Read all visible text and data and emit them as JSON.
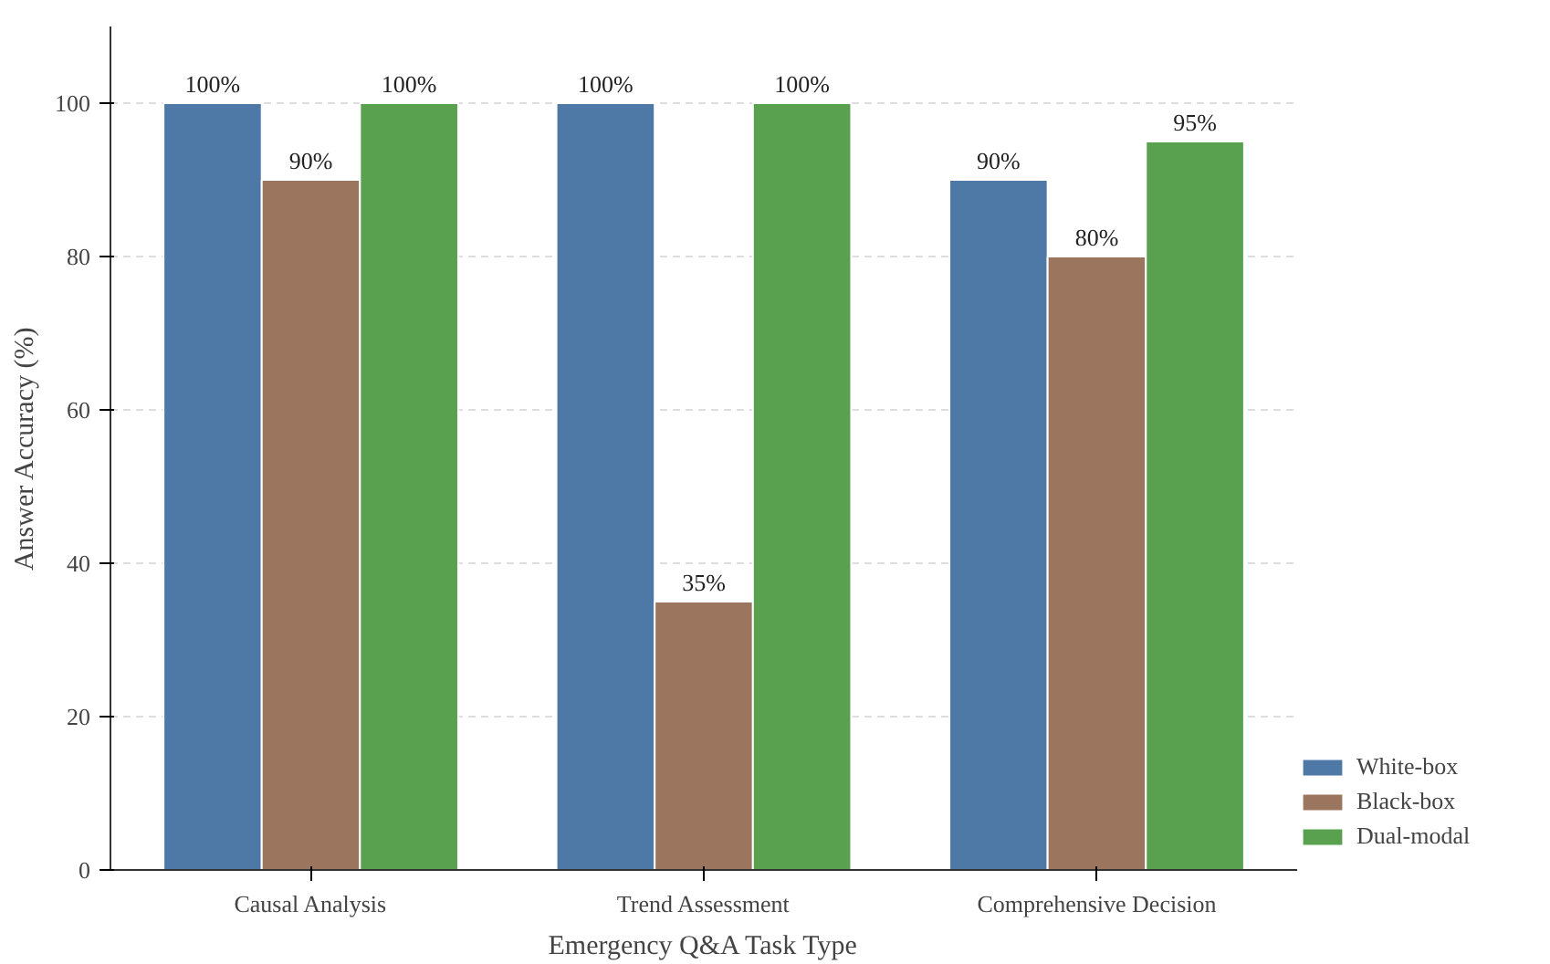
{
  "chart_data": {
    "type": "bar",
    "xlabel": "Emergency Q&A Task Type",
    "ylabel": "Answer Accuracy (%)",
    "categories": [
      "Causal Analysis",
      "Trend Assessment",
      "Comprehensive Decision"
    ],
    "series": [
      {
        "name": "White-box",
        "color": "#4e79a7",
        "values": [
          100,
          100,
          90
        ],
        "value_labels": [
          "100%",
          "100%",
          "90%"
        ]
      },
      {
        "name": "Black-box",
        "color": "#9c755f",
        "values": [
          90,
          35,
          80
        ],
        "value_labels": [
          "90%",
          "35%",
          "80%"
        ]
      },
      {
        "name": "Dual-modal",
        "color": "#59a14f",
        "values": [
          100,
          100,
          95
        ],
        "value_labels": [
          "100%",
          "100%",
          "95%"
        ]
      }
    ],
    "ylim": [
      0,
      110
    ],
    "yticks": [
      0,
      20,
      40,
      60,
      80,
      100
    ],
    "grid": "y",
    "legend": "bottom right"
  }
}
